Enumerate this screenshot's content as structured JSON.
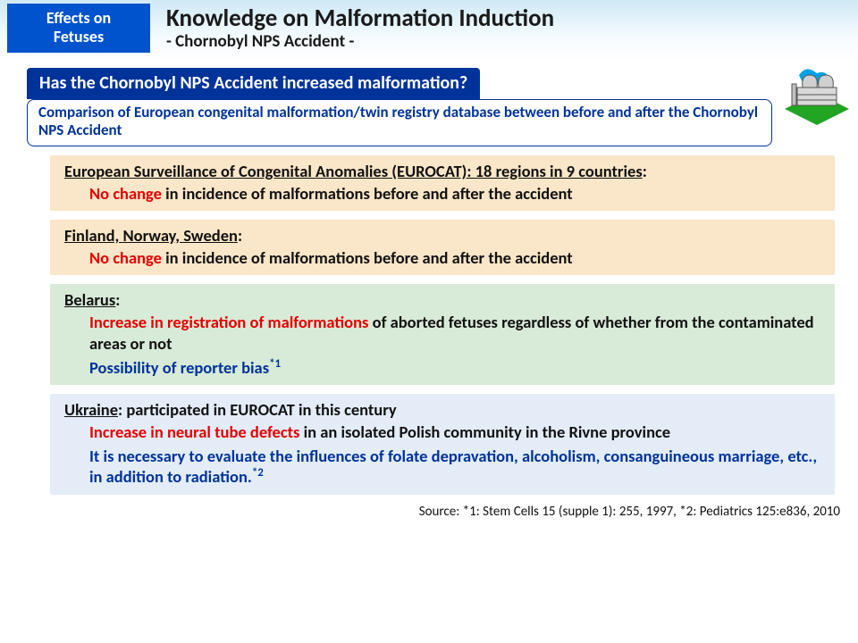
{
  "header": {
    "badge_line1": "Effects on",
    "badge_line2": "Fetuses",
    "title": "Knowledge on Malformation Induction",
    "subtitle": "- Chornobyl NPS Accident -"
  },
  "question": "Has the Chornobyl NPS Accident increased malformation?",
  "comparison": "Comparison of European congenital malformation/twin registry database between before and after the Chornobyl NPS Accident",
  "cards": [
    {
      "bg": "bg-cream",
      "heading_underlined": "European Surveillance of Congenital Anomalies (EUROCAT): 18 regions in 9 countries",
      "heading_tail": ":",
      "lines": [
        {
          "parts": [
            {
              "cls": "red",
              "text": "No change"
            },
            {
              "cls": "blk",
              "text": " in incidence of malformations before and after the accident"
            }
          ]
        }
      ]
    },
    {
      "bg": "bg-cream",
      "heading_underlined": "Finland, Norway, Sweden",
      "heading_tail": ":",
      "lines": [
        {
          "parts": [
            {
              "cls": "red",
              "text": "No change"
            },
            {
              "cls": "blk",
              "text": " in incidence of malformations before and after the accident"
            }
          ]
        }
      ]
    },
    {
      "bg": "bg-green",
      "heading_underlined": "Belarus",
      "heading_tail": ":",
      "lines": [
        {
          "parts": [
            {
              "cls": "red",
              "text": "Increase in registration of malformations"
            },
            {
              "cls": "blk",
              "text": " of aborted fetuses regardless of whether from the contaminated areas or not"
            }
          ]
        },
        {
          "parts": [
            {
              "cls": "blue",
              "text": "Possibility of reporter bias"
            }
          ],
          "sup": "*1"
        }
      ]
    },
    {
      "bg": "bg-blue",
      "heading_underlined": "Ukraine",
      "heading_tail": ": participated in EUROCAT in this century",
      "lines": [
        {
          "parts": [
            {
              "cls": "red",
              "text": "Increase in neural tube defects"
            },
            {
              "cls": "blk",
              "text": " in an isolated Polish community in the Rivne province"
            }
          ]
        },
        {
          "parts": [
            {
              "cls": "blue",
              "text": "It is necessary to evaluate the influences of folate depravation, alcoholism, consanguineous marriage, etc., in addition to radiation."
            }
          ],
          "sup": "*2"
        }
      ]
    }
  ],
  "source": "Source: *1: Stem Cells 15 (supple 1): 255, 1997,  *2: Pediatrics 125:e836, 2010",
  "icon_colors": {
    "sky": "#00a2e8",
    "cloud": "#ffffff",
    "grass": "#22a522",
    "plant": "#c0c0c0",
    "plant_stroke": "#555555"
  }
}
